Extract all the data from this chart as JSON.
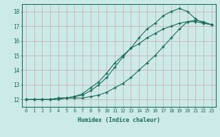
{
  "title": "",
  "xlabel": "Humidex (Indice chaleur)",
  "ylabel": "",
  "bg_color": "#cceae8",
  "grid_color": "#c8a8a8",
  "line_color": "#1a6b5a",
  "xlim": [
    -0.5,
    23.5
  ],
  "ylim": [
    11.5,
    18.5
  ],
  "xticks": [
    0,
    1,
    2,
    3,
    4,
    5,
    6,
    7,
    8,
    9,
    10,
    11,
    12,
    13,
    14,
    15,
    16,
    17,
    18,
    19,
    20,
    21,
    22,
    23
  ],
  "yticks": [
    12,
    13,
    14,
    15,
    16,
    17,
    18
  ],
  "series1_y": [
    12.0,
    12.0,
    12.0,
    12.0,
    12.1,
    12.1,
    12.1,
    12.1,
    12.2,
    12.3,
    12.5,
    12.8,
    13.1,
    13.5,
    14.0,
    14.5,
    15.0,
    15.6,
    16.2,
    16.8,
    17.3,
    17.4,
    17.3,
    17.1
  ],
  "series2_y": [
    12.0,
    12.0,
    12.0,
    12.0,
    12.1,
    12.1,
    12.2,
    12.3,
    12.6,
    13.0,
    13.5,
    14.2,
    14.9,
    15.5,
    16.2,
    16.8,
    17.2,
    17.7,
    18.0,
    18.2,
    18.0,
    17.5,
    17.2,
    17.1
  ],
  "series3_y": [
    12.0,
    12.0,
    12.0,
    12.0,
    12.0,
    12.1,
    12.2,
    12.4,
    12.8,
    13.2,
    13.8,
    14.5,
    15.0,
    15.5,
    15.8,
    16.2,
    16.5,
    16.8,
    17.0,
    17.2,
    17.3,
    17.3,
    17.2,
    17.1
  ]
}
